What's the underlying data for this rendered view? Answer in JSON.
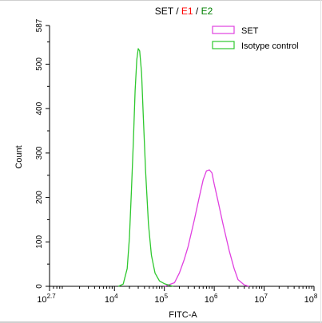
{
  "chart_data": {
    "type": "line",
    "title_parts": [
      {
        "text": "SET",
        "color": "#000000"
      },
      {
        "text": " / ",
        "color": "#000000"
      },
      {
        "text": "E1",
        "color": "#ff0000"
      },
      {
        "text": " / ",
        "color": "#000000"
      },
      {
        "text": "E2",
        "color": "#008000"
      }
    ],
    "xlabel": "FITC-A",
    "ylabel": "Count",
    "x_scale": "log",
    "xlim": [
      500,
      100000000
    ],
    "ylim": [
      0,
      587
    ],
    "x_ticks": [
      {
        "value": 500,
        "base": "10",
        "exp": "2.7"
      },
      {
        "value": 10000,
        "base": "10",
        "exp": "4"
      },
      {
        "value": 100000,
        "base": "10",
        "exp": "5"
      },
      {
        "value": 1000000,
        "base": "10",
        "exp": "6"
      },
      {
        "value": 10000000,
        "base": "10",
        "exp": "7"
      },
      {
        "value": 100000000,
        "base": "10",
        "exp": "8"
      }
    ],
    "y_ticks": [
      {
        "value": 0,
        "label": "0"
      },
      {
        "value": 100,
        "label": "100"
      },
      {
        "value": 200,
        "label": "200"
      },
      {
        "value": 300,
        "label": "300"
      },
      {
        "value": 400,
        "label": "400"
      },
      {
        "value": 500,
        "label": "500"
      },
      {
        "value": 587,
        "label": "587"
      }
    ],
    "legend_position": "top-right",
    "grid": false,
    "series": [
      {
        "name": "SET",
        "color": "#e040e0",
        "points": [
          [
            100000,
            0
          ],
          [
            160000,
            8
          ],
          [
            200000,
            30
          ],
          [
            250000,
            60
          ],
          [
            300000,
            90
          ],
          [
            400000,
            150
          ],
          [
            500000,
            200
          ],
          [
            600000,
            240
          ],
          [
            700000,
            260
          ],
          [
            800000,
            262
          ],
          [
            900000,
            255
          ],
          [
            1000000,
            230
          ],
          [
            1200000,
            190
          ],
          [
            1500000,
            140
          ],
          [
            2000000,
            80
          ],
          [
            2500000,
            40
          ],
          [
            3000000,
            15
          ],
          [
            4000000,
            3
          ],
          [
            5000000,
            0
          ]
        ]
      },
      {
        "name": "Isotype control",
        "color": "#2ec82e",
        "points": [
          [
            12000,
            0
          ],
          [
            15000,
            5
          ],
          [
            18000,
            40
          ],
          [
            20000,
            110
          ],
          [
            22000,
            220
          ],
          [
            24000,
            330
          ],
          [
            26000,
            440
          ],
          [
            28000,
            510
          ],
          [
            30000,
            535
          ],
          [
            32000,
            530
          ],
          [
            35000,
            480
          ],
          [
            38000,
            380
          ],
          [
            42000,
            260
          ],
          [
            48000,
            140
          ],
          [
            55000,
            70
          ],
          [
            65000,
            30
          ],
          [
            80000,
            12
          ],
          [
            100000,
            6
          ],
          [
            130000,
            2
          ],
          [
            150000,
            0
          ]
        ]
      }
    ]
  }
}
